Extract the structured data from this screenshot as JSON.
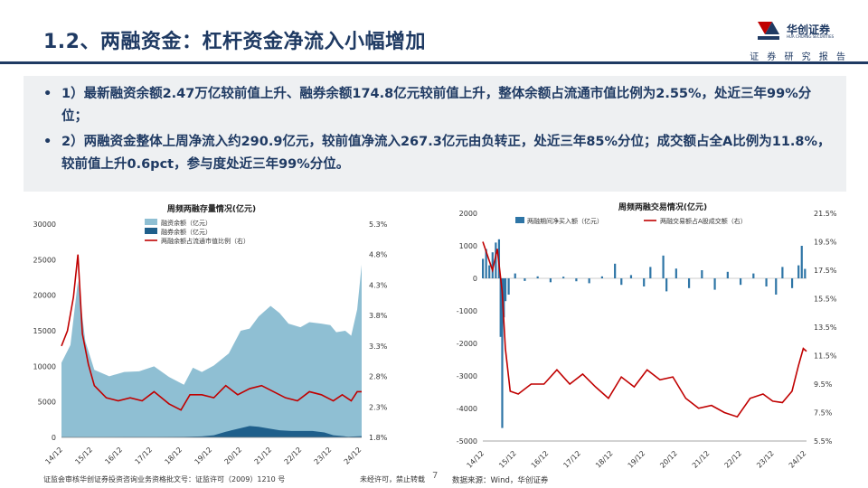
{
  "header": {
    "title": "1.2、两融资金：杠杆资金净流入小幅增加",
    "logo_text": "华创证券",
    "logo_sub": "HUA CHUANG SECURITIES",
    "tagline": "证 券 研 究 报 告"
  },
  "bullets": [
    {
      "marker": "•",
      "text": "1）最新融资余额2.47万亿较前值上升、融券余额174.8亿元较前值上升，整体余额占流通市值比例为2.55%，处近三年99%分位；"
    },
    {
      "marker": "•",
      "text": "2）两融资金整体上周净流入约290.9亿元，较前值净流入267.3亿元由负转正，处近三年85%分位；成交额占全A比例为11.8%，较前值上升0.6pct，参与度处近三年99%分位。"
    }
  ],
  "footer": {
    "left": "证监会审核华创证券投资咨询业务资格批文号：证监许可（2009）1210 号",
    "mid": "未经许可，禁止转载",
    "page": "7",
    "source": "数据来源：Wind，华创证券"
  },
  "colors": {
    "navy": "#1f3a63",
    "light_blue": "#8fbfd3",
    "dark_blue": "#1f5f8b",
    "red": "#c00000",
    "bar_blue": "#2e75a6"
  },
  "chart_data": [
    {
      "type": "area",
      "title": "周频两融存量情况(亿元)",
      "x_ticks": [
        "14/12",
        "15/12",
        "16/12",
        "17/12",
        "18/12",
        "19/12",
        "20/12",
        "21/12",
        "22/12",
        "23/12",
        "24/12"
      ],
      "y_left_ticks": [
        "0",
        "5000",
        "10000",
        "15000",
        "20000",
        "25000",
        "30000"
      ],
      "y_right_ticks": [
        "1.8%",
        "2.3%",
        "2.8%",
        "3.3%",
        "3.8%",
        "4.3%",
        "4.8%",
        "5.3%"
      ],
      "ylim_left": [
        0,
        30000
      ],
      "ylim_right": [
        1.8,
        5.3
      ],
      "legend": [
        "融资余额（亿元）",
        "融券余额（亿元）",
        "两融余额占流通市值比例（右）"
      ],
      "series": [
        {
          "name": "融资余额（亿元）",
          "axis": "left",
          "x": [
            2014.9,
            2015.2,
            2015.45,
            2015.7,
            2016.0,
            2016.5,
            2017.0,
            2017.5,
            2018.0,
            2018.5,
            2019.0,
            2019.3,
            2019.6,
            2020.0,
            2020.5,
            2020.9,
            2021.2,
            2021.5,
            2021.9,
            2022.2,
            2022.5,
            2022.9,
            2023.2,
            2023.6,
            2023.9,
            2024.1,
            2024.4,
            2024.6,
            2024.8,
            2024.95
          ],
          "values": [
            10500,
            13000,
            22000,
            13500,
            9500,
            8600,
            9200,
            9300,
            10000,
            8500,
            7400,
            9800,
            9200,
            10100,
            11800,
            15000,
            15300,
            17000,
            18500,
            17500,
            16000,
            15500,
            16200,
            16000,
            15800,
            14800,
            15000,
            14300,
            18000,
            24300
          ]
        },
        {
          "name": "融券余额（亿元）",
          "axis": "left",
          "x": [
            2014.9,
            2016.0,
            2017.0,
            2018.0,
            2019.0,
            2019.6,
            2020.0,
            2020.4,
            2020.9,
            2021.2,
            2021.5,
            2021.9,
            2022.2,
            2022.6,
            2022.9,
            2023.3,
            2023.7,
            2024.0,
            2024.5,
            2024.95
          ],
          "values": [
            50,
            30,
            60,
            60,
            80,
            150,
            300,
            800,
            1300,
            1600,
            1500,
            1200,
            1000,
            900,
            900,
            900,
            700,
            300,
            100,
            175
          ]
        },
        {
          "name": "两融余额占流通市值比例（右）",
          "axis": "right",
          "x": [
            2014.9,
            2015.1,
            2015.3,
            2015.45,
            2015.6,
            2015.8,
            2016.0,
            2016.4,
            2016.8,
            2017.2,
            2017.6,
            2018.0,
            2018.5,
            2018.9,
            2019.2,
            2019.6,
            2020.0,
            2020.4,
            2020.8,
            2021.2,
            2021.6,
            2022.0,
            2022.4,
            2022.8,
            2023.2,
            2023.6,
            2024.0,
            2024.3,
            2024.6,
            2024.8,
            2024.95
          ],
          "values": [
            3.3,
            3.55,
            4.1,
            4.8,
            3.5,
            3.0,
            2.65,
            2.45,
            2.4,
            2.45,
            2.4,
            2.55,
            2.35,
            2.25,
            2.5,
            2.5,
            2.45,
            2.65,
            2.5,
            2.6,
            2.65,
            2.55,
            2.45,
            2.4,
            2.55,
            2.5,
            2.4,
            2.5,
            2.4,
            2.55,
            2.55
          ]
        }
      ]
    },
    {
      "type": "bar",
      "title": "周频两融交易情况(亿元)",
      "x_ticks": [
        "14/12",
        "15/12",
        "16/12",
        "17/12",
        "18/12",
        "19/12",
        "20/12",
        "21/12",
        "22/12",
        "23/12",
        "24/12"
      ],
      "y_left_ticks": [
        "-5000",
        "-4000",
        "-3000",
        "-2000",
        "-1000",
        "0",
        "1000",
        "2000"
      ],
      "y_right_ticks": [
        "5.5%",
        "7.5%",
        "9.5%",
        "11.5%",
        "13.5%",
        "15.5%",
        "17.5%",
        "19.5%",
        "21.5%"
      ],
      "ylim_left": [
        -5000,
        2000
      ],
      "ylim_right": [
        5.5,
        21.5
      ],
      "legend": [
        "两融期间净买入额（亿元）",
        "两融交易额占A股成交额（右）"
      ],
      "series": [
        {
          "name": "两融期间净买入额（亿元）",
          "axis": "left",
          "x": [
            2014.9,
            2015.0,
            2015.1,
            2015.2,
            2015.3,
            2015.4,
            2015.45,
            2015.5,
            2015.55,
            2015.6,
            2015.7,
            2015.9,
            2016.2,
            2016.6,
            2017.0,
            2017.4,
            2017.8,
            2018.2,
            2018.6,
            2019.0,
            2019.2,
            2019.5,
            2019.9,
            2020.1,
            2020.5,
            2020.6,
            2020.9,
            2021.3,
            2021.7,
            2022.1,
            2022.5,
            2022.9,
            2023.3,
            2023.7,
            2024.0,
            2024.2,
            2024.5,
            2024.7,
            2024.8,
            2024.9
          ],
          "values": [
            600,
            900,
            400,
            800,
            1100,
            1200,
            -1800,
            -4600,
            -1200,
            -700,
            -500,
            150,
            -80,
            60,
            -120,
            50,
            -90,
            -150,
            60,
            450,
            -200,
            100,
            -250,
            350,
            700,
            -400,
            300,
            -300,
            250,
            -350,
            200,
            -200,
            150,
            -250,
            -500,
            350,
            -300,
            400,
            1000,
            290.9
          ]
        },
        {
          "name": "两融交易额占A股成交额（右）",
          "axis": "right",
          "x": [
            2014.9,
            2015.05,
            2015.2,
            2015.35,
            2015.5,
            2015.6,
            2015.75,
            2016.0,
            2016.4,
            2016.8,
            2017.2,
            2017.6,
            2018.0,
            2018.4,
            2018.8,
            2019.2,
            2019.6,
            2020.0,
            2020.4,
            2020.8,
            2021.2,
            2021.6,
            2022.0,
            2022.4,
            2022.8,
            2023.2,
            2023.6,
            2023.9,
            2024.2,
            2024.5,
            2024.7,
            2024.85,
            2024.95
          ],
          "values": [
            19.5,
            18.5,
            17.5,
            19.0,
            16.0,
            12.0,
            9.0,
            8.8,
            9.5,
            9.5,
            10.5,
            9.5,
            10.2,
            9.3,
            8.5,
            10.0,
            9.3,
            10.5,
            9.8,
            10.0,
            8.5,
            7.8,
            8.0,
            7.5,
            7.2,
            8.5,
            8.8,
            8.3,
            8.2,
            9.0,
            10.8,
            12.0,
            11.8
          ]
        }
      ]
    }
  ]
}
